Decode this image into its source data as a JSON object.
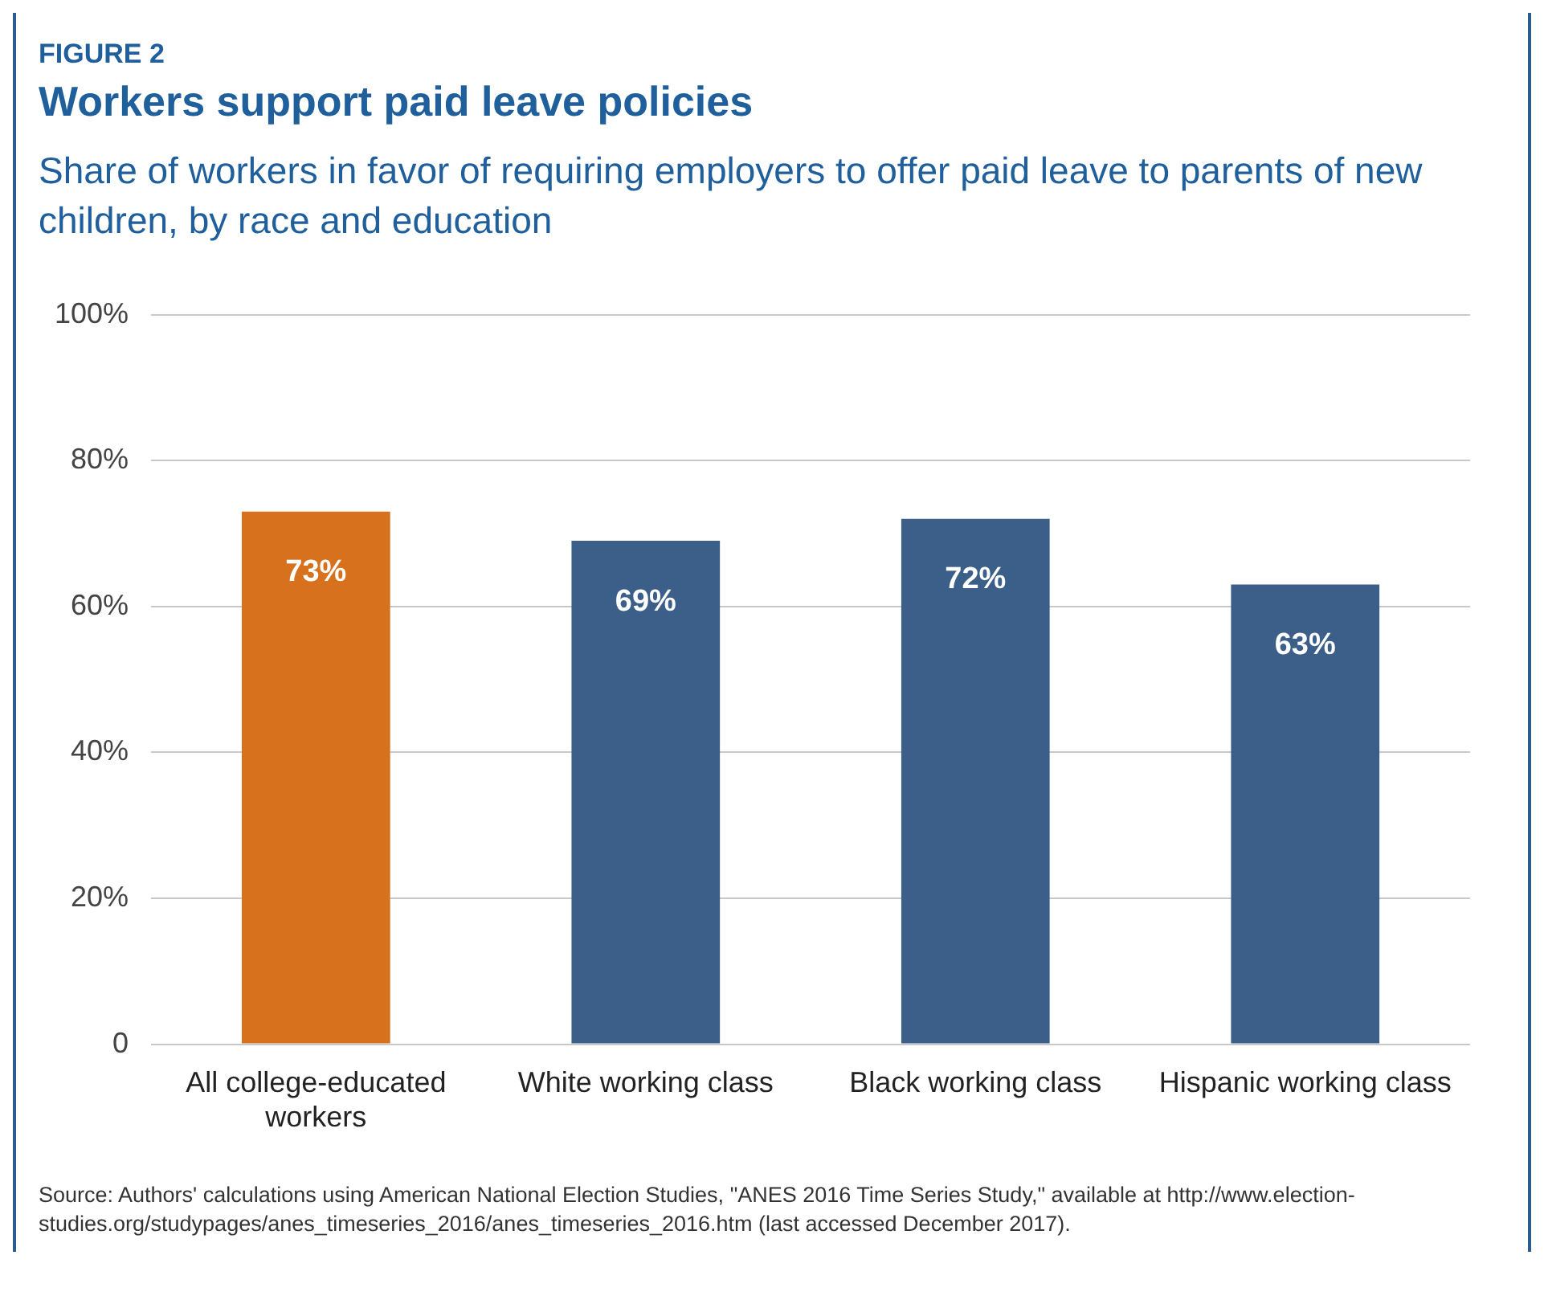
{
  "chart_data": {
    "type": "bar",
    "title": "Workers support paid leave policies",
    "subtitle": "Share of workers in favor of requiring employers to offer paid leave to parents of new children, by race and education",
    "annotations": [
      "FIGURE 2",
      "Source: Authors' calculations using American National Election Studies, \"ANES 2016 Time Series Study,\" available at http://www.election-studies.org/studypages/anes_timeseries_2016/anes_timeseries_2016.htm (last accessed December 2017)."
    ],
    "categories": [
      "All college-educated workers",
      "White working class",
      "Black working class",
      "Hispanic working class"
    ],
    "values": [
      73,
      69,
      72,
      63
    ],
    "colors": [
      "#d8711d",
      "#3b5f88",
      "#3b5f88",
      "#3b5f88"
    ],
    "value_labels": [
      "73%",
      "69%",
      "72%",
      "63%"
    ],
    "ylim": [
      0,
      100
    ],
    "yticks": [
      {
        "value": 0,
        "label": "0"
      },
      {
        "value": 20,
        "label": "20%"
      },
      {
        "value": 40,
        "label": "40%"
      },
      {
        "value": 60,
        "label": "60%"
      },
      {
        "value": 80,
        "label": "80%"
      },
      {
        "value": 100,
        "label": "100%"
      }
    ],
    "grid": "y",
    "legend": false
  }
}
